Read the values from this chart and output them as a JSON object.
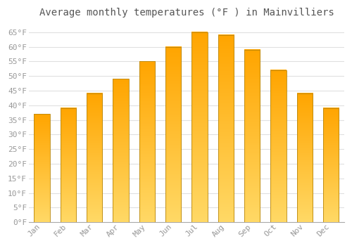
{
  "title": "Average monthly temperatures (°F ) in Mainvilliers",
  "months": [
    "Jan",
    "Feb",
    "Mar",
    "Apr",
    "May",
    "Jun",
    "Jul",
    "Aug",
    "Sep",
    "Oct",
    "Nov",
    "Dec"
  ],
  "values": [
    37,
    39,
    44,
    49,
    55,
    60,
    65,
    64,
    59,
    52,
    44,
    39
  ],
  "bar_color_top": "#FFA500",
  "bar_color_bottom": "#FFD966",
  "bar_edge_color": "#B8860B",
  "background_color": "#FFFFFF",
  "grid_color": "#E0E0E0",
  "text_color": "#999999",
  "title_color": "#555555",
  "ylim": [
    0,
    68
  ],
  "yticks": [
    0,
    5,
    10,
    15,
    20,
    25,
    30,
    35,
    40,
    45,
    50,
    55,
    60,
    65
  ],
  "title_fontsize": 10,
  "tick_fontsize": 8,
  "bar_width": 0.6
}
